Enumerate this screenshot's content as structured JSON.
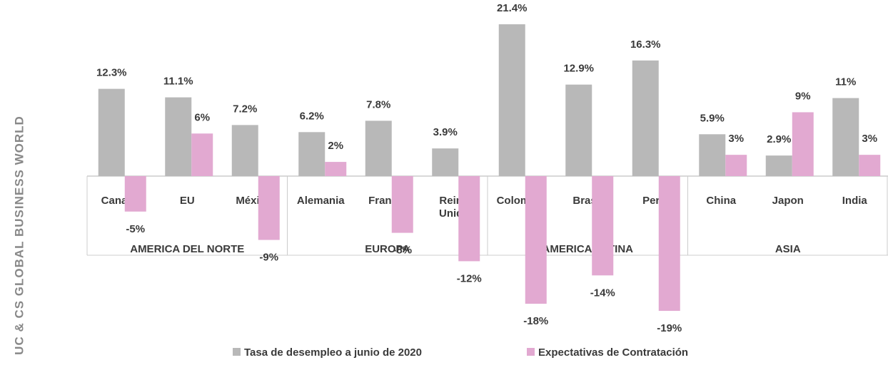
{
  "chart_data": {
    "type": "bar",
    "groups": [
      {
        "name": "AMERICA DEL NORTE",
        "categories": [
          "Canada",
          "EU",
          "México"
        ]
      },
      {
        "name": "EUROPA",
        "categories": [
          "Alemania",
          "Francia",
          "Reino Unido"
        ]
      },
      {
        "name": "AMERICA LATINA",
        "categories": [
          "Colombia",
          "Brasil",
          "Perú"
        ]
      },
      {
        "name": "ASIA",
        "categories": [
          "China",
          "Japon",
          "India"
        ]
      }
    ],
    "series": [
      {
        "name": "Tasa de desempleo a junio de 2020",
        "color": "#b8b8b8",
        "values": [
          12.3,
          11.1,
          7.2,
          6.2,
          7.8,
          3.9,
          21.4,
          12.9,
          16.3,
          5.9,
          2.9,
          11
        ],
        "value_labels": [
          "12.3%",
          "11.1%",
          "7.2%",
          "6.2%",
          "7.8%",
          "3.9%",
          "21.4%",
          "12.9%",
          "16.3%",
          "5.9%",
          "2.9%",
          "11%"
        ]
      },
      {
        "name": "Expectativas de Contratación",
        "color": "#e2a9d1",
        "values": [
          -5,
          6,
          -9,
          2,
          -8,
          -12,
          -18,
          -14,
          -19,
          3,
          9,
          3
        ],
        "value_labels": [
          "-5%",
          "6%",
          "-9%",
          "2%",
          "-8%",
          "-12%",
          "-18%",
          "-14%",
          "-19%",
          "3%",
          "9%",
          "3%"
        ]
      }
    ],
    "side_text": "UC & CS GLOBAL BUSINESS WORLD"
  }
}
